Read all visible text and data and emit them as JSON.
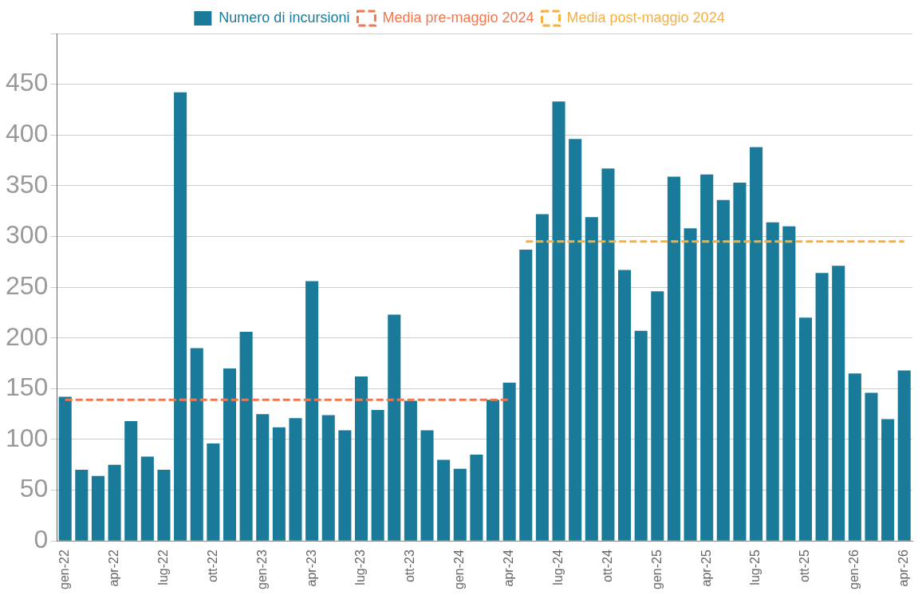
{
  "chart_data": {
    "type": "bar",
    "categories": [
      "gen-22",
      null,
      null,
      "apr-22",
      null,
      null,
      "lug-22",
      null,
      null,
      "ott-22",
      null,
      null,
      "gen-23",
      null,
      null,
      "apr-23",
      null,
      null,
      "lug-23",
      null,
      null,
      "ott-23",
      null,
      null,
      "gen-24",
      null,
      null,
      "apr-24",
      null,
      null,
      "lug-24",
      null,
      null,
      "ott-24",
      null,
      null,
      "gen-25",
      null,
      null,
      "apr-25",
      null,
      null,
      "lug-25",
      null,
      null,
      "ott-25",
      null,
      null,
      "gen-26",
      null,
      null,
      "apr-26"
    ],
    "series": [
      {
        "name": "Numero di incursioni",
        "color": "#1a7a9a",
        "values": [
          142,
          70,
          64,
          75,
          118,
          83,
          70,
          442,
          190,
          96,
          170,
          206,
          125,
          112,
          121,
          256,
          124,
          109,
          162,
          129,
          223,
          138,
          109,
          80,
          71,
          85,
          139,
          156,
          287,
          322,
          433,
          396,
          319,
          367,
          267,
          207,
          246,
          359,
          308,
          361,
          336,
          353,
          388,
          314,
          310,
          220,
          264,
          271,
          165,
          146,
          120,
          168
        ]
      },
      {
        "name": "Media pre-maggio 2024",
        "type": "line",
        "line_style": "dashed",
        "color": "#f07850",
        "values": [
          139,
          139,
          139,
          139,
          139,
          139,
          139,
          139,
          139,
          139,
          139,
          139,
          139,
          139,
          139,
          139,
          139,
          139,
          139,
          139,
          139,
          139,
          139,
          139,
          139,
          139,
          139,
          139,
          null,
          null,
          null,
          null,
          null,
          null,
          null,
          null,
          null,
          null,
          null,
          null,
          null,
          null,
          null,
          null,
          null,
          null,
          null,
          null,
          null,
          null,
          null,
          null
        ]
      },
      {
        "name": "Media post-maggio 2024",
        "type": "line",
        "line_style": "dashed",
        "color": "#f5b040",
        "values": [
          null,
          null,
          null,
          null,
          null,
          null,
          null,
          null,
          null,
          null,
          null,
          null,
          null,
          null,
          null,
          null,
          null,
          null,
          null,
          null,
          null,
          null,
          null,
          null,
          null,
          null,
          null,
          null,
          295,
          295,
          295,
          295,
          295,
          295,
          295,
          295,
          295,
          295,
          295,
          295,
          295,
          295,
          295,
          295,
          295,
          295,
          295,
          295,
          295,
          295,
          295,
          295
        ]
      }
    ],
    "ylim": [
      0,
      500
    ],
    "yticks": [
      0,
      50,
      100,
      150,
      200,
      250,
      300,
      350,
      400,
      450,
      {
        "value": 500,
        "label": null
      }
    ],
    "grid": "y",
    "legend": "top",
    "marker": "none"
  }
}
